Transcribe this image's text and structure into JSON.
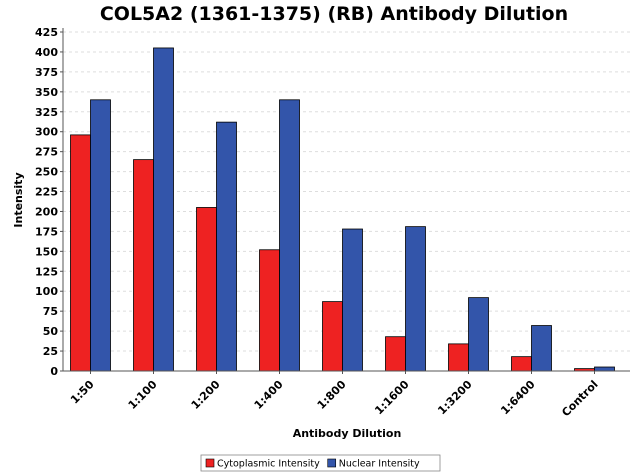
{
  "chart_data": {
    "type": "bar",
    "title": "COL5A2 (1361-1375) (RB) Antibody Dilution",
    "xlabel": "Antibody Dilution",
    "ylabel": "Intensity",
    "categories": [
      "1:50",
      "1:100",
      "1:200",
      "1:400",
      "1:800",
      "1:1600",
      "1:3200",
      "1:6400",
      "Control"
    ],
    "series": [
      {
        "name": "Cytoplasmic Intensity",
        "color": "#ee2222",
        "values": [
          296,
          265,
          205,
          152,
          87,
          43,
          34,
          18,
          3
        ]
      },
      {
        "name": "Nuclear Intensity",
        "color": "#3355aa",
        "values": [
          340,
          405,
          312,
          340,
          178,
          181,
          92,
          57,
          5
        ]
      }
    ],
    "ylim": [
      0,
      425
    ],
    "ytick_step": 25,
    "grid": true,
    "legend_position": "bottom-center"
  }
}
